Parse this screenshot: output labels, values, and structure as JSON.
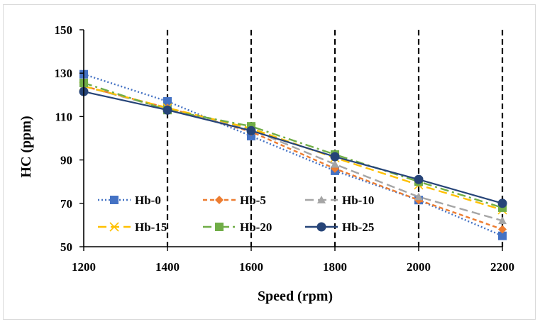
{
  "chart_data": {
    "type": "line",
    "title": "",
    "xlabel": "Speed (rpm)",
    "ylabel": "HC (ppm)",
    "x": [
      1200,
      1400,
      1600,
      1800,
      2000,
      2200
    ],
    "x_tick_labels": [
      "1200",
      "1400",
      "1600",
      "1800",
      "2000",
      "2200"
    ],
    "ylim": [
      50,
      150
    ],
    "y_ticks": [
      50,
      70,
      90,
      110,
      130,
      150
    ],
    "y_tick_labels": [
      "50",
      "70",
      "90",
      "110",
      "130",
      "150"
    ],
    "vertical_dashed_gridlines_at": [
      1400,
      1600,
      1800,
      2000,
      2200
    ],
    "legend_position": "bottom-inside, 2 rows x 3 columns",
    "series": [
      {
        "name": "Hb-0",
        "values": [
          129.5,
          117,
          101,
          85,
          71.5,
          55
        ],
        "color": "#4472C4",
        "line": "dotted",
        "marker": "square"
      },
      {
        "name": "Hb-5",
        "values": [
          124,
          114,
          103,
          86,
          71.5,
          58
        ],
        "color": "#ED7D31",
        "line": "dashed",
        "marker": "diamond"
      },
      {
        "name": "Hb-10",
        "values": [
          124,
          113.5,
          104,
          88,
          73,
          62
        ],
        "color": "#A5A5A5",
        "line": "long-dash",
        "marker": "triangle"
      },
      {
        "name": "Hb-15",
        "values": [
          124,
          114,
          104.5,
          91,
          78.5,
          67
        ],
        "color": "#FFC000",
        "line": "long-dash",
        "marker": "x"
      },
      {
        "name": "Hb-20",
        "values": [
          125.5,
          113,
          105.5,
          92.5,
          80,
          68
        ],
        "color": "#70AD47",
        "line": "dash-dot",
        "marker": "square"
      },
      {
        "name": "Hb-25",
        "values": [
          121.5,
          113,
          103.5,
          91.5,
          81,
          70
        ],
        "color": "#264478",
        "line": "solid",
        "marker": "circle"
      }
    ]
  }
}
